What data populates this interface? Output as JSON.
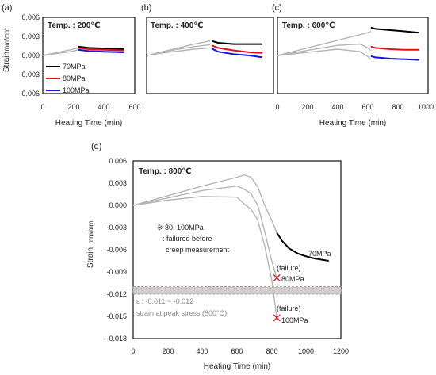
{
  "colors": {
    "series_70": "#000000",
    "series_80": "#e0101a",
    "series_100": "#1616d8",
    "heating": "#b5b5b5",
    "band": "#d3cccc"
  },
  "chart_data": [
    {
      "type": "line",
      "panel_label": "(a)",
      "temperature_label": "Temp. : 200℃",
      "xlabel": "Heating Time (min)",
      "ylabel": "Strain",
      "ylabel_unit": "mm/mm",
      "xlim": [
        0,
        600
      ],
      "ylim": [
        -0.006,
        0.006
      ],
      "xticks": [
        "0",
        "200",
        "400",
        "600"
      ],
      "yticks": [
        "0.006",
        "0.003",
        "0.000",
        "-0.003",
        "-0.006"
      ],
      "legend": {
        "position": "bottom-left",
        "entries": [
          "70MPa",
          "80MPa",
          "100MPa"
        ]
      },
      "heating": [
        {
          "x": [
            0,
            60,
            120,
            180,
            230
          ],
          "y": [
            0.0,
            0.0003,
            0.0006,
            0.0009,
            0.0012
          ]
        },
        {
          "x": [
            0,
            60,
            120,
            180,
            230
          ],
          "y": [
            0.0,
            0.0002,
            0.0004,
            0.0006,
            0.0009
          ]
        }
      ],
      "series": [
        {
          "name": "70MPa",
          "x": [
            230,
            300,
            400,
            530
          ],
          "y": [
            0.0014,
            0.0012,
            0.0011,
            0.001
          ]
        },
        {
          "name": "80MPa",
          "x": [
            230,
            300,
            400,
            530
          ],
          "y": [
            0.0012,
            0.001,
            0.0009,
            0.0008
          ]
        },
        {
          "name": "100MPa",
          "x": [
            230,
            300,
            400,
            530
          ],
          "y": [
            0.0009,
            0.0007,
            0.0006,
            0.0005
          ]
        }
      ]
    },
    {
      "type": "line",
      "panel_label": "(b)",
      "temperature_label": "Temp. : 400℃",
      "xlim": [
        0,
        800
      ],
      "ylim": [
        -0.006,
        0.006
      ],
      "heating": [
        {
          "x": [
            0,
            100,
            200,
            300,
            400
          ],
          "y": [
            0.0,
            0.0006,
            0.0012,
            0.0018,
            0.0023
          ]
        },
        {
          "x": [
            0,
            100,
            200,
            300,
            400
          ],
          "y": [
            0.0,
            0.0005,
            0.001,
            0.0014,
            0.0017
          ]
        },
        {
          "x": [
            0,
            100,
            200,
            300,
            400
          ],
          "y": [
            0.0,
            0.0004,
            0.0007,
            0.001,
            0.0012
          ]
        }
      ],
      "series": [
        {
          "name": "70MPa",
          "x": [
            410,
            450,
            550,
            650,
            730
          ],
          "y": [
            0.0023,
            0.002,
            0.0018,
            0.0018,
            0.0018
          ]
        },
        {
          "name": "80MPa",
          "x": [
            410,
            450,
            550,
            650,
            730
          ],
          "y": [
            0.0016,
            0.0012,
            0.0008,
            0.0005,
            0.0004
          ]
        },
        {
          "name": "100MPa",
          "x": [
            410,
            450,
            550,
            650,
            730
          ],
          "y": [
            0.0011,
            0.0006,
            0.0002,
            0.0,
            -0.0003
          ]
        }
      ]
    },
    {
      "type": "line",
      "panel_label": "(c)",
      "temperature_label": "Temp. : 600℃",
      "xlabel": "Heating Time (min)",
      "xlim": [
        0,
        1000
      ],
      "ylim": [
        -0.006,
        0.006
      ],
      "xticks": [
        "0",
        "200",
        "400",
        "600",
        "800",
        "1000"
      ],
      "heating": [
        {
          "x": [
            0,
            200,
            400,
            550,
            600,
            620
          ],
          "y": [
            0.0,
            0.0012,
            0.0024,
            0.0033,
            0.0036,
            0.0038
          ]
        },
        {
          "x": [
            0,
            200,
            400,
            550,
            600,
            620
          ],
          "y": [
            0.0,
            0.0008,
            0.0016,
            0.0018,
            0.0012,
            0.0008
          ]
        },
        {
          "x": [
            0,
            200,
            400,
            550,
            600,
            620
          ],
          "y": [
            0.0,
            0.0005,
            0.001,
            0.0006,
            -0.0002,
            -0.0006
          ]
        }
      ],
      "series": [
        {
          "name": "70MPa",
          "x": [
            620,
            650,
            750,
            850,
            940
          ],
          "y": [
            0.0044,
            0.0042,
            0.004,
            0.0038,
            0.0036
          ]
        },
        {
          "name": "80MPa",
          "x": [
            620,
            650,
            750,
            850,
            940
          ],
          "y": [
            0.0014,
            0.0012,
            0.001,
            0.0009,
            0.0009
          ]
        },
        {
          "name": "100MPa",
          "x": [
            620,
            650,
            750,
            850,
            940
          ],
          "y": [
            -0.0001,
            -0.0003,
            -0.0005,
            -0.0006,
            -0.0007
          ]
        }
      ]
    },
    {
      "type": "line",
      "panel_label": "(d)",
      "temperature_label": "Temp. : 800℃",
      "xlabel": "Heating Time (min)",
      "ylabel": "Strain",
      "ylabel_unit": "mm/mm",
      "xlim": [
        0,
        1200
      ],
      "ylim": [
        -0.018,
        0.006
      ],
      "xticks": [
        "0",
        "200",
        "400",
        "600",
        "800",
        "1000",
        "1200"
      ],
      "yticks": [
        "0.006",
        "0.003",
        "0.000",
        "-0.003",
        "-0.006",
        "-0.009",
        "-0.012",
        "-0.015",
        "-0.018"
      ],
      "heating": [
        {
          "x": [
            0,
            200,
            400,
            600,
            640,
            680,
            720,
            760,
            800,
            830
          ],
          "y": [
            0.0,
            0.0013,
            0.0026,
            0.0038,
            0.0041,
            0.0038,
            0.0025,
            0.0,
            -0.002,
            -0.0037
          ]
        },
        {
          "x": [
            0,
            200,
            400,
            600,
            640,
            680,
            720,
            760,
            800,
            830
          ],
          "y": [
            0.0,
            0.001,
            0.002,
            0.0026,
            0.0022,
            0.0016,
            0.0,
            -0.0035,
            -0.0075,
            -0.0098
          ]
        },
        {
          "x": [
            0,
            200,
            400,
            600,
            640,
            680,
            720,
            760,
            800,
            830
          ],
          "y": [
            0.0,
            0.0007,
            0.0012,
            0.0011,
            0.0002,
            -0.0005,
            -0.002,
            -0.0055,
            -0.01,
            -0.0152
          ]
        }
      ],
      "series": [
        {
          "name": "70MPa",
          "x": [
            830,
            860,
            900,
            950,
            1000,
            1050,
            1130
          ],
          "y": [
            -0.0037,
            -0.0048,
            -0.0058,
            -0.0065,
            -0.0069,
            -0.0072,
            -0.0075
          ]
        }
      ],
      "failures": [
        {
          "label": "(failure)",
          "stress": "80MPa",
          "x": 830,
          "y": -0.0098
        },
        {
          "label": "(failure)",
          "stress": "100MPa",
          "x": 830,
          "y": -0.0152
        }
      ],
      "band": {
        "y_range": [
          -0.012,
          -0.011
        ],
        "label_line1": "ε : -0.011 ~ -0.012",
        "label_line2": "strain at peak stress (800°C)"
      },
      "annotations": {
        "marker": "※ 80, 100MPa",
        "line2": ": failured before",
        "line3": "creep measurement",
        "series_label": "70MPa"
      }
    }
  ]
}
